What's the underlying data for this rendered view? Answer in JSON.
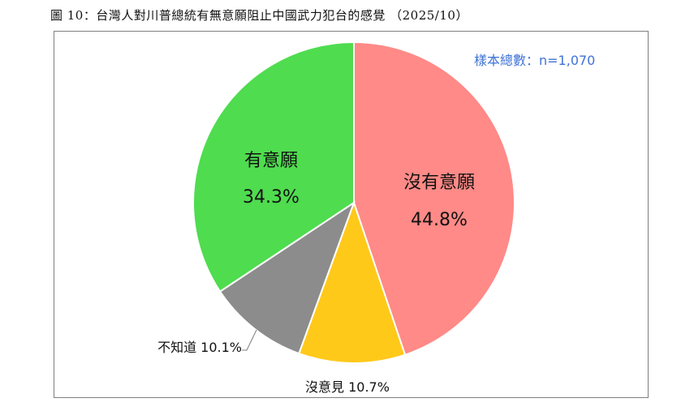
{
  "figure": {
    "title": "圖 10：台灣人對川普總統有無意願阻止中國武力犯台的感覺 （2025/10）",
    "sample_note": "樣本總數：n=1,070"
  },
  "chart_data": {
    "type": "pie",
    "title": "圖 10：台灣人對川普總統有無意願阻止中國武力犯台的感覺 （2025/10）",
    "categories": [
      "沒有意願",
      "沒意見",
      "不知道",
      "有意願"
    ],
    "values": [
      44.8,
      10.7,
      10.1,
      34.3
    ],
    "labels": [
      "44.8%",
      "10.7%",
      "10.1%",
      "34.3%"
    ],
    "colors": [
      "#ff8a87",
      "#ffc91a",
      "#8c8c8c",
      "#4fdc4f"
    ],
    "start_angle_deg": 0,
    "direction": "clockwise",
    "legend": "none"
  }
}
